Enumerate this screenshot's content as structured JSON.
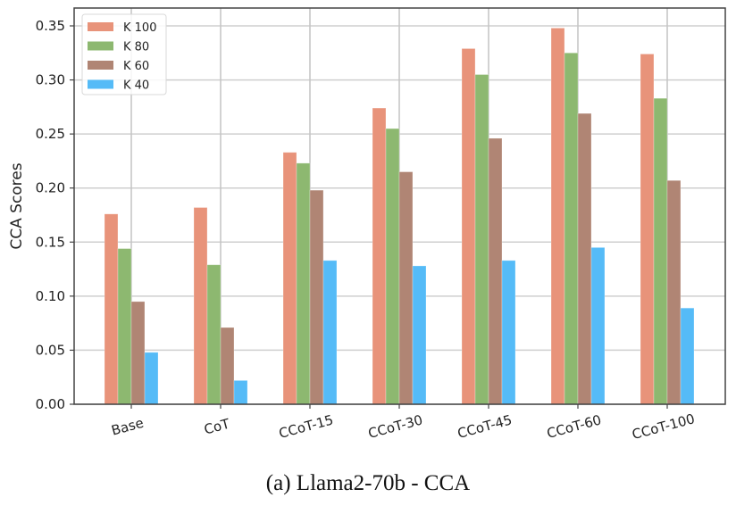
{
  "chart_data": {
    "type": "bar",
    "title": "",
    "xlabel": "",
    "ylabel": "CCA Scores",
    "ylim": [
      0,
      0.36
    ],
    "yticks": [
      "0.00",
      "0.05",
      "0.10",
      "0.15",
      "0.20",
      "0.25",
      "0.30",
      "0.35"
    ],
    "ytick_values": [
      0,
      0.05,
      0.1,
      0.15,
      0.2,
      0.25,
      0.3,
      0.35
    ],
    "categories": [
      "Base",
      "CoT",
      "CCoT-15",
      "CCoT-30",
      "CCoT-45",
      "CCoT-60",
      "CCoT-100"
    ],
    "grid": true,
    "legend_position": "top-left",
    "series": [
      {
        "name": "K 100",
        "color": "#E8937A",
        "values": [
          0.176,
          0.182,
          0.233,
          0.274,
          0.329,
          0.348,
          0.324
        ]
      },
      {
        "name": "K 80",
        "color": "#8DB870",
        "values": [
          0.144,
          0.129,
          0.223,
          0.255,
          0.305,
          0.325,
          0.283
        ]
      },
      {
        "name": "K 60",
        "color": "#B08574",
        "values": [
          0.095,
          0.071,
          0.198,
          0.215,
          0.246,
          0.269,
          0.207
        ]
      },
      {
        "name": "K 40",
        "color": "#55BBF7",
        "values": [
          0.048,
          0.022,
          0.133,
          0.128,
          0.133,
          0.145,
          0.089
        ]
      }
    ]
  },
  "caption": "(a) Llama2-70b - CCA"
}
